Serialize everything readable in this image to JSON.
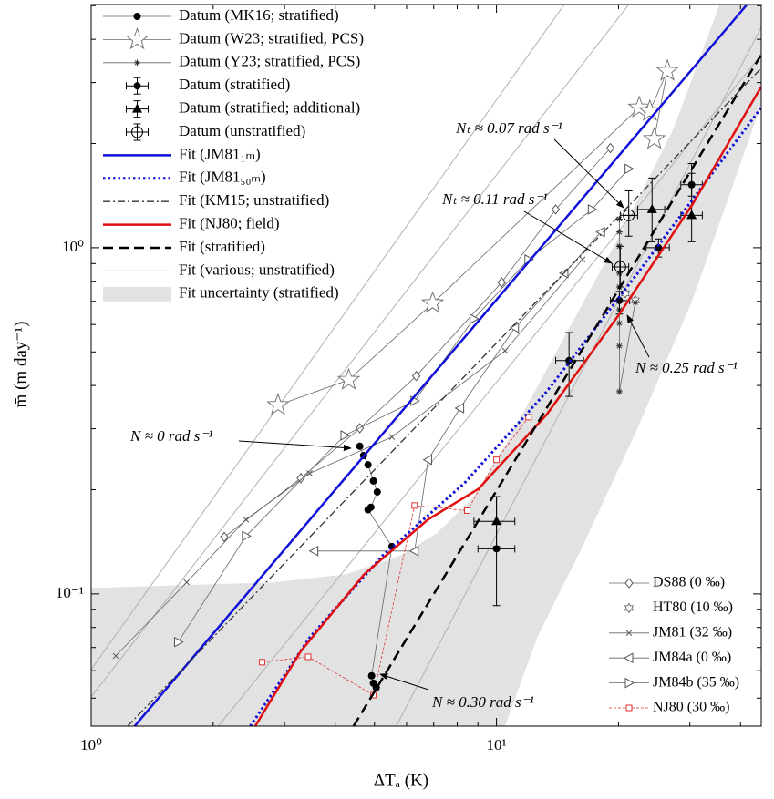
{
  "chart_data": {
    "type": "scatter",
    "xlabel": "ΔTₐ (K)",
    "ylabel": "m̄ (m day⁻¹)",
    "xscale": "log",
    "yscale": "log",
    "xlim": [
      1,
      45
    ],
    "ylim": [
      0.0415,
      5.04
    ],
    "xticks": [
      {
        "value": 1,
        "label": "10⁰"
      },
      {
        "value": 10,
        "label": "10¹"
      }
    ],
    "yticks": [
      {
        "value": 0.1,
        "label": "10⁻¹"
      },
      {
        "value": 1,
        "label": "10⁰"
      }
    ],
    "xminorticks": [
      2,
      3,
      4,
      5,
      6,
      7,
      8,
      9,
      20,
      30,
      40
    ],
    "yminorticks": [
      0.05,
      0.06,
      0.07,
      0.08,
      0.09,
      0.2,
      0.3,
      0.4,
      0.5,
      0.6,
      0.7,
      0.8,
      0.9,
      2,
      3,
      4,
      5
    ],
    "annotations": [
      "Nₜ ≈ 0.07 rad s⁻¹",
      "Nₜ ≈ 0.11 rad s⁻¹",
      "N ≈ 0.25 rad s⁻¹",
      "N ≈ 0 rad s⁻¹",
      "N ≈ 0.30 rad s⁻¹"
    ],
    "series": [
      {
        "name": "Fit uncertainty (stratified)",
        "type": "band",
        "color": "#e2e2e2",
        "legend": "upper left",
        "x": [
          1,
          2.81,
          4.26,
          5.81,
          7.14,
          8.79,
          10.8,
          14.7,
          20.1,
          27.4,
          35.5,
          45,
          45,
          30.4,
          22.3,
          16.3,
          12.6,
          10.5,
          1
        ],
        "values": [
          0.104,
          0.108,
          0.114,
          0.129,
          0.15,
          0.191,
          0.284,
          0.552,
          1.08,
          2.22,
          5.04,
          5.04,
          2.59,
          0.704,
          0.301,
          0.137,
          0.0748,
          0.0415,
          0.0415
        ]
      },
      {
        "name": "Fit (various; unstratified)",
        "type": "line",
        "color": "#b0b0b0",
        "dash": "solid",
        "width": 1,
        "legend": "upper left",
        "x": [
          1,
          21.2,
          null,
          1,
          14.7,
          null,
          5.66,
          45,
          null,
          2.06,
          45
        ],
        "values": [
          0.0504,
          5.04,
          null,
          0.0605,
          5.04,
          null,
          0.0415,
          4.33,
          null,
          0.0415,
          3.61
        ]
      },
      {
        "name": "DS88 (0 ‰)",
        "type": "scatter",
        "marker": "diamond",
        "color": "#555555",
        "connect": true,
        "legend": "lower right",
        "x": [
          2.13,
          3.29,
          4.6,
          6.34,
          10.3,
          14.0,
          19.1
        ],
        "values": [
          0.146,
          0.216,
          0.301,
          0.426,
          0.794,
          1.29,
          1.94
        ]
      },
      {
        "name": "HT80 (10 ‰)",
        "type": "scatter",
        "marker": "hexagram",
        "color": "#555555",
        "connect": false,
        "legend": "lower right",
        "x": [
          22.0,
          20.8
        ],
        "values": [
          0.705,
          0.739
        ]
      },
      {
        "name": "JM81 (32 ‰)",
        "type": "scatter",
        "marker": "x",
        "color": "#555555",
        "connect": true,
        "legend": "lower right",
        "x": [
          1.15,
          1.72,
          2.41,
          3.46,
          5.52,
          10.5,
          16.3
        ],
        "values": [
          0.0662,
          0.108,
          0.164,
          0.223,
          0.284,
          0.504,
          0.925
        ]
      },
      {
        "name": "JM84a (0 ‰)",
        "type": "scatter",
        "marker": "tri-left",
        "color": "#555555",
        "connect": true,
        "legend": "lower right",
        "x": [
          3.55,
          6.28,
          6.78,
          8.13,
          11.1,
          14.7,
          18.1
        ],
        "values": [
          0.133,
          0.133,
          0.244,
          0.344,
          0.587,
          0.844,
          1.11
        ]
      },
      {
        "name": "JM84b (35 ‰)",
        "type": "scatter",
        "marker": "tri-right",
        "color": "#555555",
        "connect": true,
        "legend": "lower right",
        "x": [
          1.64,
          2.41,
          4.22,
          6.28,
          8.79,
          12.0,
          17.2,
          21.2
        ],
        "values": [
          0.0726,
          0.147,
          0.287,
          0.361,
          0.623,
          0.925,
          1.29,
          1.69
        ]
      },
      {
        "name": "NJ80 (30 ‰)",
        "type": "scatter",
        "marker": "square",
        "color": "#e03030",
        "connect": true,
        "lineDash": "dashed-fine",
        "legend": "lower right",
        "x": [
          2.64,
          3.43,
          4.97,
          6.28,
          8.47,
          10,
          12.0
        ],
        "values": [
          0.0635,
          0.0658,
          0.051,
          0.18,
          0.174,
          0.244,
          0.324
        ]
      },
      {
        "name": "Datum (MK16; stratified)",
        "type": "scatter",
        "marker": "dot",
        "color": "#000000",
        "connect": true,
        "legend": "upper left",
        "x": [
          4.6,
          4.7,
          4.82,
          4.97,
          5.08,
          4.9,
          4.82,
          5.52,
          4.92,
          4.97,
          5.05
        ],
        "values": [
          0.267,
          0.251,
          0.236,
          0.212,
          0.197,
          0.178,
          0.175,
          0.137,
          0.058,
          0.0552,
          0.0536
        ]
      },
      {
        "name": "Datum (W23; stratified, PCS)",
        "type": "scatter",
        "marker": "star",
        "color": "#777777",
        "connect": true,
        "legend": "upper left",
        "x": [
          2.89,
          4.32,
          6.96,
          22.5,
          23.9,
          26.4,
          24.5
        ],
        "values": [
          0.351,
          0.415,
          0.691,
          2.54,
          2.48,
          3.24,
          2.06
        ]
      },
      {
        "name": "Datum (Y23; stratified, PCS)",
        "type": "scatter",
        "marker": "asterisk",
        "color": "#333333",
        "connect": true,
        "legend": "upper left",
        "x": [
          20.1,
          20.1,
          20.1,
          20.1,
          20.1,
          20.1,
          20.1,
          20.1,
          20.1,
          22.0
        ],
        "values": [
          1.21,
          1.11,
          1.01,
          0.844,
          0.77,
          0.662,
          0.605,
          0.52,
          0.384,
          0.695
        ]
      },
      {
        "name": "Datum (stratified)",
        "type": "errorbar",
        "marker": "dot",
        "color": "#000000",
        "legend": "upper left",
        "x": [
          15.1,
          20.1,
          25.1,
          30.3,
          10
        ],
        "values": [
          0.472,
          0.704,
          1.0,
          1.52,
          0.135
        ],
        "ylow": [
          0.372,
          0.643,
          0.94,
          1.41,
          0.0925
        ],
        "yhigh": [
          0.569,
          0.748,
          1.06,
          1.64,
          0.191
        ],
        "xlow": [
          14.0,
          19.1,
          23.4,
          28.5,
          9.0
        ],
        "xhigh": [
          16.4,
          21.3,
          26.7,
          32.2,
          11.1
        ]
      },
      {
        "name": "Datum (stratified; additional)",
        "type": "errorbar",
        "marker": "triangle",
        "color": "#000000",
        "legend": "upper left",
        "x": [
          10,
          24.2,
          30.3
        ],
        "values": [
          0.162,
          1.29,
          1.24
        ],
        "ylow": [
          0.137,
          1.04,
          1.04
        ],
        "yhigh": [
          0.191,
          1.59,
          1.75
        ],
        "xlow": [
          8.8,
          22.3,
          28.5
        ],
        "xhigh": [
          11.1,
          26.0,
          32.2
        ]
      },
      {
        "name": "Datum (unstratified)",
        "type": "errorbar",
        "marker": "circle-plus",
        "color": "#000000",
        "legend": "upper left",
        "x": [
          21.2,
          20.2
        ],
        "values": [
          1.24,
          0.88
        ],
        "ylow": [
          1.08,
          0.77
        ],
        "yhigh": [
          1.46,
          1.01
        ],
        "xlow": [
          20.2,
          19.3
        ],
        "xhigh": [
          22.3,
          21.2
        ]
      },
      {
        "name": "Fit (JM81₁ₘ)",
        "type": "line",
        "color": "#1010d8",
        "dash": "solid",
        "width": 2.5,
        "legend": "upper left",
        "x": [
          1.28,
          41.5
        ],
        "values": [
          0.0415,
          5.04
        ]
      },
      {
        "name": "Fit (JM81₅₀ₘ)",
        "type": "line",
        "color": "#1010d8",
        "dash": "dotted",
        "width": 3,
        "legend": "upper left",
        "x": [
          2.47,
          3.46,
          5.24,
          8.34,
          13.3,
          22.3,
          45
        ],
        "values": [
          0.0415,
          0.0748,
          0.129,
          0.209,
          0.384,
          0.844,
          2.54
        ]
      },
      {
        "name": "Fit (KM15; unstratified)",
        "type": "line",
        "color": "#333333",
        "dash": "dashdot",
        "width": 1.3,
        "legend": "upper left",
        "x": [
          1.23,
          45
        ],
        "values": [
          0.0415,
          3.3
        ]
      },
      {
        "name": "Fit (NJ80; field)",
        "type": "line",
        "color": "#e01010",
        "dash": "solid",
        "width": 2.5,
        "legend": "upper left",
        "x": [
          2.54,
          3.29,
          4.72,
          6.78,
          9.02,
          13.3,
          20.1,
          30.4,
          45
        ],
        "values": [
          0.0415,
          0.0683,
          0.114,
          0.164,
          0.201,
          0.33,
          0.643,
          1.33,
          2.92
        ]
      },
      {
        "name": "Fit (stratified)",
        "type": "line",
        "color": "#000000",
        "dash": "dashed",
        "width": 2.5,
        "legend": "upper left",
        "x": [
          4.44,
          45
        ],
        "values": [
          0.0415,
          3.61
        ]
      }
    ]
  }
}
